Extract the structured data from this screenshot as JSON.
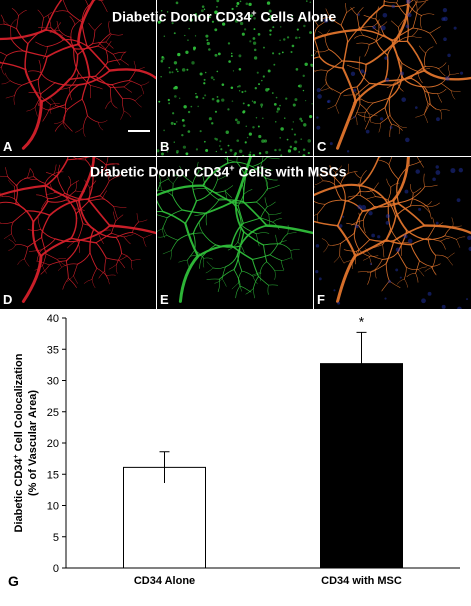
{
  "figure": {
    "row1_title_pre": "Diabetic Donor CD34",
    "row1_title_sup": "+",
    "row1_title_post": " Cells Alone",
    "row2_title_pre": "Diabetic Donor CD34",
    "row2_title_sup": "+",
    "row2_title_post": " Cells with MSCs",
    "panels": [
      {
        "label": "A",
        "color": "#d4202a"
      },
      {
        "label": "B",
        "color": "#2fbf3a"
      },
      {
        "label": "C",
        "color": "#e0742c"
      },
      {
        "label": "D",
        "color": "#d4202a"
      },
      {
        "label": "E",
        "color": "#2fbf3a"
      },
      {
        "label": "F",
        "color": "#e0742c"
      }
    ],
    "chart_panel_label": "G"
  },
  "chart_data": {
    "type": "bar",
    "categories": [
      "CD34 Alone",
      "CD34 with MSC"
    ],
    "values": [
      16.1,
      32.7
    ],
    "errors": [
      2.5,
      5.0
    ],
    "bar_colors": [
      "#ffffff",
      "#000000"
    ],
    "significance": [
      "",
      "*"
    ],
    "ylabel_line1": "Diabetic CD34",
    "ylabel_sup": "+",
    "ylabel_line1_post": " Cell Colocalization",
    "ylabel_line2": "(% of Vascular Area)",
    "ylim": [
      0,
      40
    ],
    "yticks": [
      0,
      5,
      10,
      15,
      20,
      25,
      30,
      35,
      40
    ],
    "grid": false
  }
}
